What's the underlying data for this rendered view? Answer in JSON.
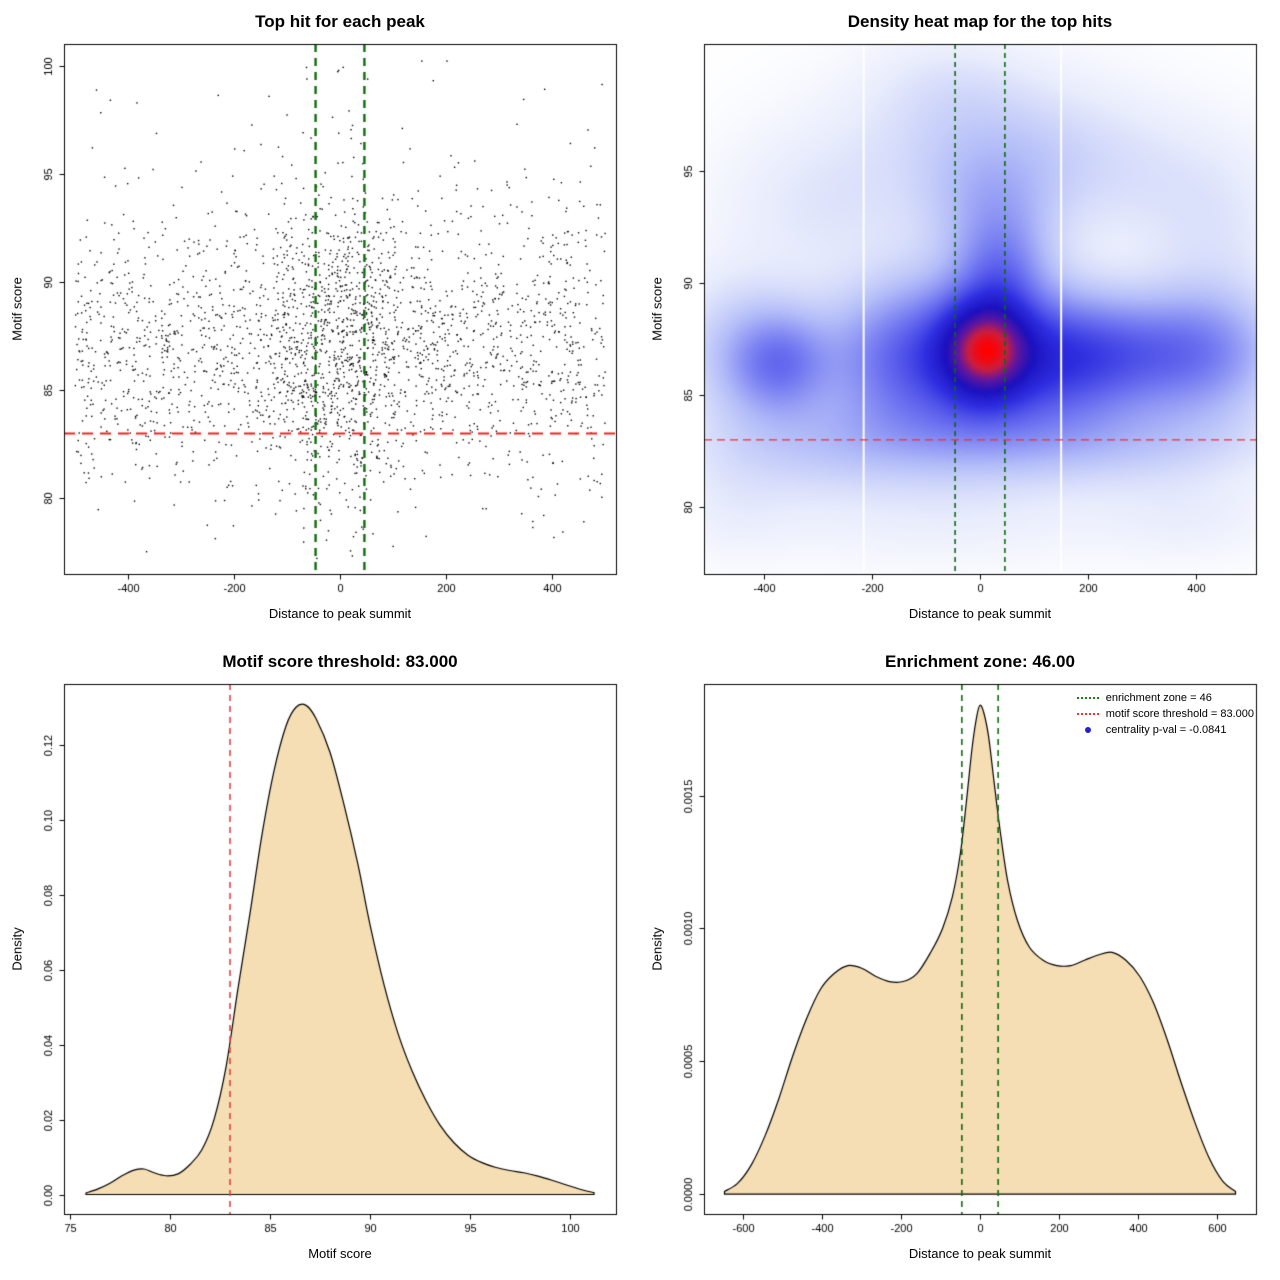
{
  "figure": {
    "background": "#ffffff"
  },
  "chart_data": [
    {
      "type": "scatter",
      "title": "Top hit for each peak",
      "xlabel": "Distance to peak summit",
      "ylabel": "Motif score",
      "xlim": [
        -520,
        520
      ],
      "ylim": [
        76.5,
        101.0
      ],
      "xticks": [
        {
          "v": -400,
          "l": "-400"
        },
        {
          "v": -200,
          "l": "-200"
        },
        {
          "v": 0,
          "l": "0"
        },
        {
          "v": 200,
          "l": "200"
        },
        {
          "v": 400,
          "l": "400"
        }
      ],
      "yticks": [
        {
          "v": 80,
          "l": "80"
        },
        {
          "v": 85,
          "l": "85"
        },
        {
          "v": 90,
          "l": "90"
        },
        {
          "v": 95,
          "l": "95"
        },
        {
          "v": 100,
          "l": "100"
        }
      ],
      "point_color": "#000000",
      "lines": [
        {
          "orient": "v",
          "at": -46,
          "color": "#0d6b0d",
          "width": 2.4,
          "dash": [
            8,
            6
          ]
        },
        {
          "orient": "v",
          "at": 46,
          "color": "#0d6b0d",
          "width": 2.4,
          "dash": [
            8,
            6
          ]
        },
        {
          "orient": "h",
          "at": 83,
          "color": "#f02020",
          "width": 2,
          "dash": [
            11,
            7
          ]
        }
      ],
      "points_spec": {
        "seed": 11,
        "n": 2750,
        "x_uniform_frac": 0.7,
        "x_center_sd": 78,
        "y_mean": 87.3,
        "y_sd": 3.3,
        "y_uniform_frac": 0.04,
        "y_min": 77.2,
        "y_max": 100.4
      }
    },
    {
      "type": "heatmap",
      "title": "Density heat map for the top hits",
      "xlabel": "Distance to peak summit",
      "ylabel": "Motif score",
      "xlim": [
        -510,
        510
      ],
      "ylim": [
        77.0,
        100.7
      ],
      "xticks": [
        {
          "v": -400,
          "l": "-400"
        },
        {
          "v": -200,
          "l": "-200"
        },
        {
          "v": 0,
          "l": "0"
        },
        {
          "v": 200,
          "l": "200"
        },
        {
          "v": 400,
          "l": "400"
        }
      ],
      "yticks": [
        {
          "v": 80,
          "l": "80"
        },
        {
          "v": 85,
          "l": "85"
        },
        {
          "v": 90,
          "l": "90"
        },
        {
          "v": 95,
          "l": "95"
        }
      ],
      "gamma": 0.75,
      "white_lines_x": [
        -215,
        150
      ],
      "components": [
        [
          10,
          87,
          55,
          1.5,
          1.0
        ],
        [
          0,
          86.8,
          135,
          2.6,
          0.55
        ],
        [
          40,
          90.5,
          55,
          1.8,
          0.35
        ],
        [
          20,
          93.5,
          85,
          2.0,
          0.22
        ],
        [
          0,
          96.5,
          170,
          2.3,
          0.15
        ],
        [
          -370,
          86.4,
          62,
          1.5,
          0.42
        ],
        [
          -440,
          87,
          90,
          2.3,
          0.22
        ],
        [
          300,
          86.8,
          125,
          1.7,
          0.45
        ],
        [
          430,
          87,
          90,
          2.1,
          0.28
        ],
        [
          150,
          86.6,
          100,
          1.8,
          0.4
        ],
        [
          -150,
          86.6,
          105,
          2.1,
          0.38
        ],
        [
          0,
          83.2,
          260,
          1.4,
          0.2
        ],
        [
          -320,
          82.6,
          150,
          1.5,
          0.12
        ],
        [
          310,
          82.9,
          180,
          1.4,
          0.12
        ],
        [
          -80,
          79.8,
          260,
          1.6,
          0.07
        ],
        [
          220,
          95,
          150,
          2.1,
          0.1
        ],
        [
          -290,
          93.5,
          130,
          2.3,
          0.1
        ],
        [
          430,
          92.5,
          100,
          2.6,
          0.1
        ],
        [
          -60,
          99,
          100,
          1.6,
          0.06
        ],
        [
          390,
          79.6,
          110,
          1.3,
          0.06
        ],
        [
          -460,
          80,
          80,
          1.5,
          0.05
        ]
      ],
      "colormap": [
        [
          0.0,
          255,
          255,
          255
        ],
        [
          0.1,
          232,
          236,
          252
        ],
        [
          0.25,
          178,
          188,
          248
        ],
        [
          0.42,
          108,
          114,
          240
        ],
        [
          0.58,
          46,
          46,
          224
        ],
        [
          0.72,
          26,
          16,
          190
        ],
        [
          0.84,
          98,
          22,
          158
        ],
        [
          0.93,
          205,
          30,
          60
        ],
        [
          1.0,
          255,
          0,
          0
        ]
      ],
      "lines": [
        {
          "orient": "v",
          "at": -46,
          "color": "#0d6b0d",
          "width": 1.6,
          "dash": [
            5,
            4
          ]
        },
        {
          "orient": "v",
          "at": 46,
          "color": "#0d6b0d",
          "width": 1.6,
          "dash": [
            5,
            4
          ]
        },
        {
          "orient": "h",
          "at": 83,
          "color": "#f03030",
          "width": 1.3,
          "dash": [
            8,
            5
          ]
        }
      ]
    },
    {
      "type": "density",
      "title": "Motif score threshold: 83.000",
      "xlabel": "Motif score",
      "ylabel": "Density",
      "xlim": [
        74.7,
        102.3
      ],
      "ylim": [
        -0.0052,
        0.1362
      ],
      "xticks": [
        {
          "v": 75,
          "l": "75"
        },
        {
          "v": 80,
          "l": "80"
        },
        {
          "v": 85,
          "l": "85"
        },
        {
          "v": 90,
          "l": "90"
        },
        {
          "v": 95,
          "l": "95"
        },
        {
          "v": 100,
          "l": "100"
        }
      ],
      "yticks": [
        {
          "v": 0,
          "l": "0.00"
        },
        {
          "v": 0.02,
          "l": "0.02"
        },
        {
          "v": 0.04,
          "l": "0.04"
        },
        {
          "v": 0.06,
          "l": "0.06"
        },
        {
          "v": 0.08,
          "l": "0.08"
        },
        {
          "v": 0.1,
          "l": "0.10"
        },
        {
          "v": 0.12,
          "l": "0.12"
        }
      ],
      "fill": "#f5deb3",
      "lines": [
        {
          "orient": "v",
          "at": 83,
          "color": "#dd4444",
          "width": 1.6,
          "dash": [
            6,
            5
          ]
        }
      ],
      "curve": [
        [
          75.8,
          0.0004
        ],
        [
          76.4,
          0.0015
        ],
        [
          77.0,
          0.003
        ],
        [
          77.6,
          0.005
        ],
        [
          78.2,
          0.0065
        ],
        [
          78.7,
          0.0068
        ],
        [
          79.2,
          0.0058
        ],
        [
          79.8,
          0.005
        ],
        [
          80.4,
          0.0055
        ],
        [
          81.0,
          0.008
        ],
        [
          81.6,
          0.012
        ],
        [
          82.2,
          0.02
        ],
        [
          82.8,
          0.034
        ],
        [
          83.4,
          0.055
        ],
        [
          84.0,
          0.075
        ],
        [
          84.6,
          0.096
        ],
        [
          85.2,
          0.113
        ],
        [
          85.8,
          0.125
        ],
        [
          86.3,
          0.13
        ],
        [
          86.8,
          0.1305
        ],
        [
          87.3,
          0.127
        ],
        [
          88.0,
          0.118
        ],
        [
          88.7,
          0.104
        ],
        [
          89.4,
          0.088
        ],
        [
          90.0,
          0.072
        ],
        [
          90.7,
          0.056
        ],
        [
          91.4,
          0.043
        ],
        [
          92.1,
          0.033
        ],
        [
          92.8,
          0.025
        ],
        [
          93.5,
          0.0185
        ],
        [
          94.2,
          0.0138
        ],
        [
          94.9,
          0.0105
        ],
        [
          95.6,
          0.0085
        ],
        [
          96.3,
          0.0072
        ],
        [
          97.0,
          0.0064
        ],
        [
          97.7,
          0.0058
        ],
        [
          98.4,
          0.0049
        ],
        [
          99.1,
          0.0038
        ],
        [
          99.8,
          0.0026
        ],
        [
          100.5,
          0.0014
        ],
        [
          101.2,
          0.0005
        ]
      ]
    },
    {
      "type": "density",
      "title": "Enrichment zone: 46.00",
      "xlabel": "Distance to peak summit",
      "ylabel": "Density",
      "xlim": [
        -700,
        700
      ],
      "ylim": [
        -7.5e-05,
        0.00192
      ],
      "xticks": [
        {
          "v": -600,
          "l": "-600"
        },
        {
          "v": -400,
          "l": "-400"
        },
        {
          "v": -200,
          "l": "-200"
        },
        {
          "v": 0,
          "l": "0"
        },
        {
          "v": 200,
          "l": "200"
        },
        {
          "v": 400,
          "l": "400"
        },
        {
          "v": 600,
          "l": "600"
        }
      ],
      "yticks": [
        {
          "v": 0,
          "l": "0.0000"
        },
        {
          "v": 0.0005,
          "l": "0.0005"
        },
        {
          "v": 0.001,
          "l": "0.0010"
        },
        {
          "v": 0.0015,
          "l": "0.0015"
        }
      ],
      "fill": "#f5deb3",
      "lines": [
        {
          "orient": "v",
          "at": -46,
          "color": "#0d6b0d",
          "width": 1.6,
          "dash": [
            6,
            5
          ]
        },
        {
          "orient": "v",
          "at": 46,
          "color": "#0d6b0d",
          "width": 1.6,
          "dash": [
            6,
            5
          ]
        }
      ],
      "legend": [
        {
          "symbol": "line",
          "color": "#1e7a1e",
          "label": "enrichment zone = 46"
        },
        {
          "symbol": "line",
          "color": "#ee3333",
          "label": "motif score threshold = 83.000"
        },
        {
          "symbol": "point",
          "color": "#2222cc",
          "label": "centrality p-val = -0.0841"
        }
      ],
      "curve": [
        [
          -648,
          1e-05
        ],
        [
          -615,
          4e-05
        ],
        [
          -580,
          0.00011
        ],
        [
          -545,
          0.00022
        ],
        [
          -510,
          0.00036
        ],
        [
          -475,
          0.00052
        ],
        [
          -440,
          0.00066
        ],
        [
          -405,
          0.00077
        ],
        [
          -370,
          0.00083
        ],
        [
          -335,
          0.00086
        ],
        [
          -300,
          0.00085
        ],
        [
          -265,
          0.00082
        ],
        [
          -230,
          0.0008
        ],
        [
          -195,
          0.0008
        ],
        [
          -160,
          0.00083
        ],
        [
          -125,
          0.00091
        ],
        [
          -95,
          0.001
        ],
        [
          -70,
          0.00112
        ],
        [
          -50,
          0.00128
        ],
        [
          -35,
          0.00147
        ],
        [
          -20,
          0.00168
        ],
        [
          -8,
          0.0018
        ],
        [
          0,
          0.00184
        ],
        [
          10,
          0.00181
        ],
        [
          22,
          0.00172
        ],
        [
          35,
          0.00156
        ],
        [
          50,
          0.00138
        ],
        [
          70,
          0.00118
        ],
        [
          95,
          0.00103
        ],
        [
          125,
          0.00093
        ],
        [
          160,
          0.00088
        ],
        [
          195,
          0.00086
        ],
        [
          230,
          0.00086
        ],
        [
          265,
          0.00088
        ],
        [
          300,
          0.0009
        ],
        [
          335,
          0.00091
        ],
        [
          370,
          0.00088
        ],
        [
          405,
          0.00082
        ],
        [
          440,
          0.00072
        ],
        [
          475,
          0.00058
        ],
        [
          510,
          0.00042
        ],
        [
          545,
          0.00027
        ],
        [
          580,
          0.00014
        ],
        [
          615,
          5e-05
        ],
        [
          648,
          1e-05
        ]
      ]
    }
  ]
}
